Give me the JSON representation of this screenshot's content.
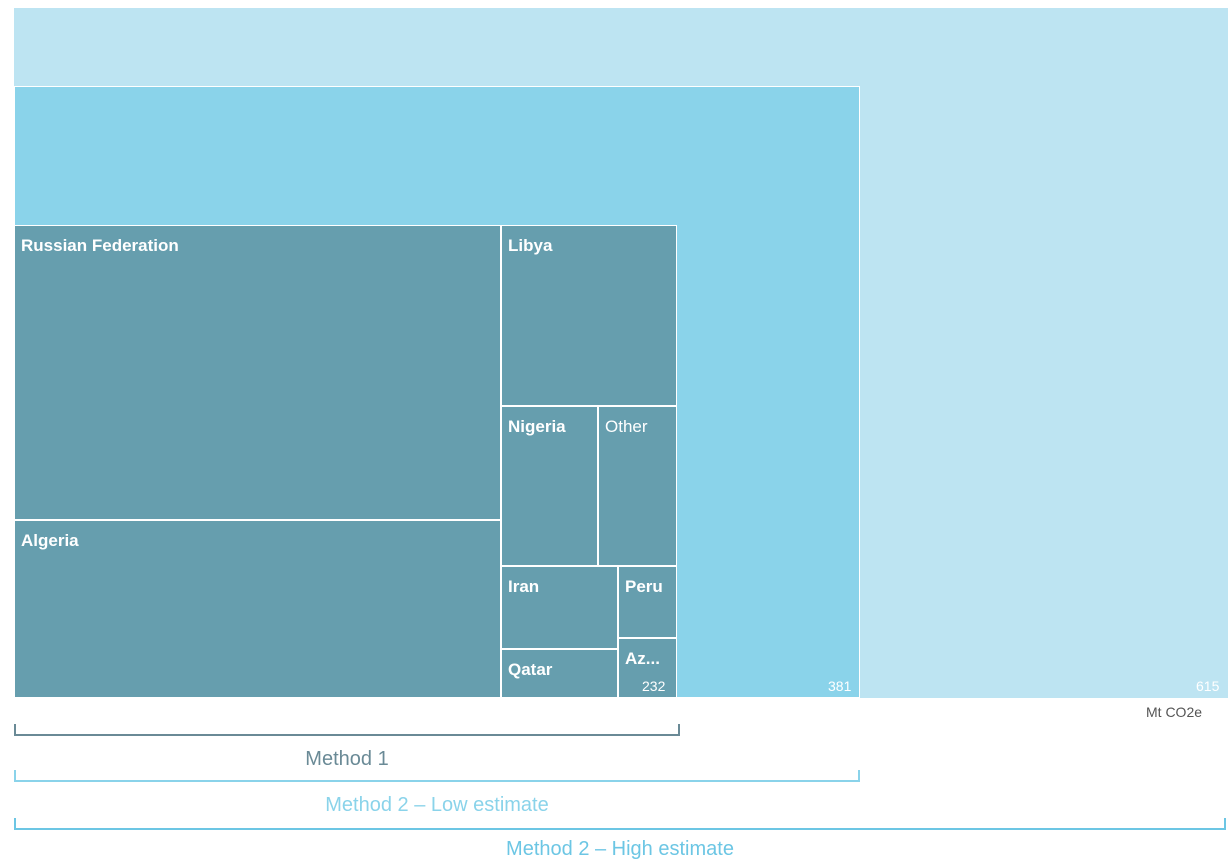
{
  "chart_data": {
    "type": "treemap",
    "unit": "Mt CO2e",
    "colors": {
      "high": "#bde4f2",
      "low": "#8ad3ea",
      "method1": "#669eae",
      "method1_text": "#6a8a96",
      "low_text": "#8ad3ea",
      "high_text": "#6cc6e4"
    },
    "totals": {
      "method1": 232,
      "method2_low": 381,
      "method2_high": 615
    },
    "method1_breakdown": [
      {
        "name": "Russian Federation"
      },
      {
        "name": "Algeria"
      },
      {
        "name": "Libya"
      },
      {
        "name": "Nigeria"
      },
      {
        "name": "Other"
      },
      {
        "name": "Iran"
      },
      {
        "name": "Peru"
      },
      {
        "name": "Qatar"
      },
      {
        "name": "Az..."
      }
    ],
    "methods": [
      {
        "label": "Method 1"
      },
      {
        "label": "Method 2 – Low estimate"
      },
      {
        "label": "Method 2 – High estimate"
      }
    ]
  }
}
